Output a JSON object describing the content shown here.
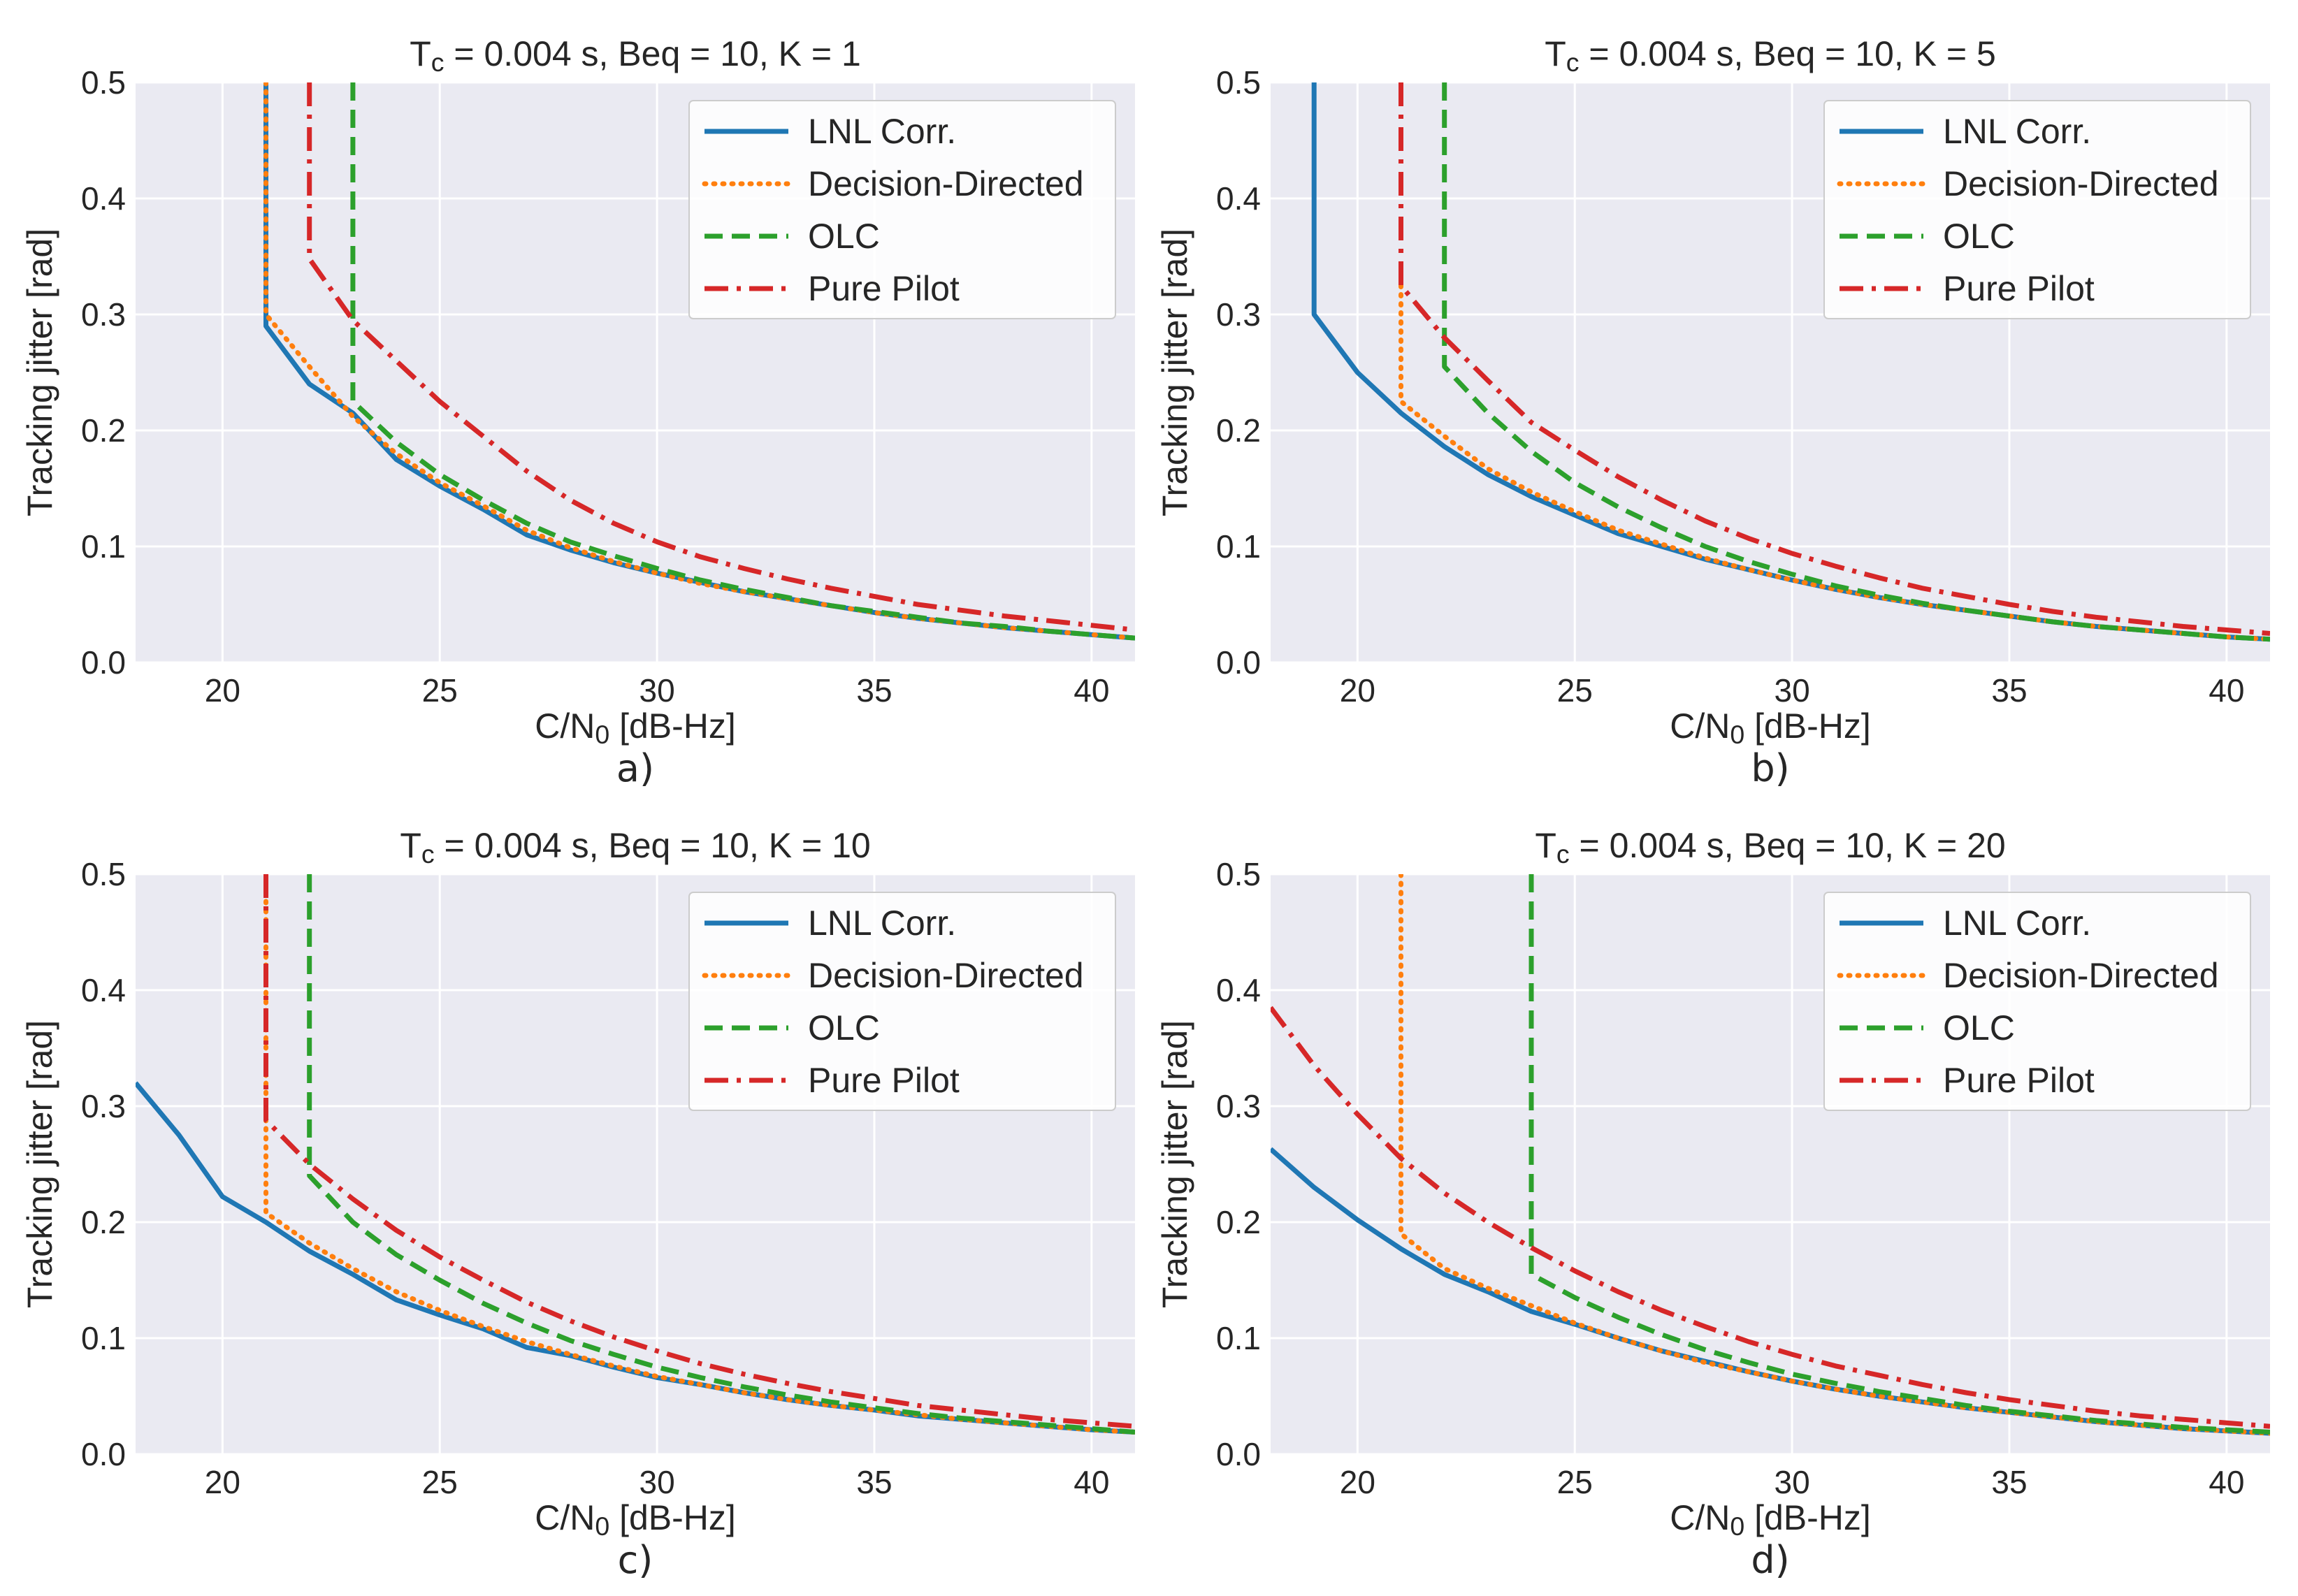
{
  "figure": {
    "colors": {
      "panel_bg": "#eaeaf2",
      "grid": "#ffffff",
      "text": "#262626",
      "legend_bg": "#ffffff",
      "legend_border": "#cccccc"
    }
  },
  "chart_data": [
    {
      "type": "line",
      "panel_label": "a)",
      "title": "T_c = 0.004 s, Beq = 10, K = 1",
      "title_parts": {
        "pre": "T",
        "sub": "c",
        "post": " = 0.004 s, Beq = 10, K = 1"
      },
      "xlabel_parts": {
        "pre": "C/N",
        "sub": "0",
        "post": " [dB-Hz]"
      },
      "ylabel": "Tracking jitter [rad]",
      "xlim": [
        18,
        41
      ],
      "ylim": [
        0,
        0.5
      ],
      "xticks": [
        20,
        25,
        30,
        35,
        40
      ],
      "yticks": [
        0.0,
        0.1,
        0.2,
        0.3,
        0.4,
        0.5
      ],
      "ytick_labels": [
        "0.0",
        "0.1",
        "0.2",
        "0.3",
        "0.4",
        "0.5"
      ],
      "grid": true,
      "legend_position": "top-right",
      "series": [
        {
          "name": "LNL Corr.",
          "color": "#1f77b4",
          "style": "solid",
          "x": [
            21,
            21,
            22,
            23,
            24,
            25,
            26,
            27,
            28,
            29,
            30,
            31,
            32,
            33,
            34,
            35,
            36,
            37,
            38,
            39,
            40,
            41
          ],
          "y": [
            0.5,
            0.29,
            0.24,
            0.215,
            0.175,
            0.152,
            0.132,
            0.11,
            0.097,
            0.086,
            0.077,
            0.069,
            0.061,
            0.055,
            0.049,
            0.043,
            0.038,
            0.034,
            0.03,
            0.027,
            0.024,
            0.021
          ]
        },
        {
          "name": "Decision-Directed",
          "color": "#ff7f0e",
          "style": "dotted",
          "x": [
            21,
            21,
            22,
            23,
            24,
            25,
            26,
            27,
            28,
            29,
            30,
            31,
            32,
            33,
            34,
            35,
            36,
            37,
            38,
            39,
            40,
            41
          ],
          "y": [
            0.5,
            0.3,
            0.255,
            0.212,
            0.18,
            0.155,
            0.135,
            0.114,
            0.099,
            0.087,
            0.077,
            0.068,
            0.061,
            0.055,
            0.049,
            0.043,
            0.038,
            0.034,
            0.03,
            0.027,
            0.024,
            0.021
          ]
        },
        {
          "name": "OLC",
          "color": "#2ca02c",
          "style": "dashed",
          "x": [
            23,
            23,
            24,
            25,
            26,
            27,
            28,
            29,
            30,
            31,
            32,
            33,
            34,
            35,
            36,
            37,
            38,
            39,
            40,
            41
          ],
          "y": [
            0.5,
            0.225,
            0.19,
            0.162,
            0.14,
            0.12,
            0.104,
            0.092,
            0.081,
            0.071,
            0.063,
            0.056,
            0.049,
            0.044,
            0.039,
            0.034,
            0.031,
            0.027,
            0.024,
            0.021
          ]
        },
        {
          "name": "Pure Pilot",
          "color": "#d62728",
          "style": "dashdot",
          "x": [
            22,
            22,
            23,
            24,
            25,
            26,
            27,
            28,
            29,
            30,
            31,
            32,
            33,
            34,
            35,
            36,
            37,
            38,
            39,
            40,
            41
          ],
          "y": [
            0.5,
            0.348,
            0.295,
            0.26,
            0.225,
            0.195,
            0.165,
            0.14,
            0.12,
            0.104,
            0.091,
            0.081,
            0.072,
            0.064,
            0.057,
            0.05,
            0.045,
            0.04,
            0.036,
            0.032,
            0.028
          ]
        }
      ]
    },
    {
      "type": "line",
      "panel_label": "b)",
      "title": "T_c = 0.004 s, Beq = 10, K = 5",
      "title_parts": {
        "pre": "T",
        "sub": "c",
        "post": " = 0.004 s, Beq = 10, K = 5"
      },
      "xlabel_parts": {
        "pre": "C/N",
        "sub": "0",
        "post": " [dB-Hz]"
      },
      "ylabel": "Tracking jitter [rad]",
      "xlim": [
        18,
        41
      ],
      "ylim": [
        0,
        0.5
      ],
      "xticks": [
        20,
        25,
        30,
        35,
        40
      ],
      "yticks": [
        0.0,
        0.1,
        0.2,
        0.3,
        0.4,
        0.5
      ],
      "ytick_labels": [
        "0.0",
        "0.1",
        "0.2",
        "0.3",
        "0.4",
        "0.5"
      ],
      "grid": true,
      "legend_position": "top-right",
      "series": [
        {
          "name": "LNL Corr.",
          "color": "#1f77b4",
          "style": "solid",
          "x": [
            19,
            19,
            20,
            21,
            22,
            23,
            24,
            25,
            26,
            27,
            28,
            29,
            30,
            31,
            32,
            33,
            34,
            35,
            36,
            37,
            38,
            39,
            40,
            41
          ],
          "y": [
            0.5,
            0.3,
            0.25,
            0.215,
            0.186,
            0.162,
            0.143,
            0.127,
            0.111,
            0.1,
            0.089,
            0.08,
            0.071,
            0.063,
            0.056,
            0.05,
            0.045,
            0.04,
            0.035,
            0.031,
            0.028,
            0.025,
            0.022,
            0.02
          ]
        },
        {
          "name": "Decision-Directed",
          "color": "#ff7f0e",
          "style": "dotted",
          "x": [
            21,
            21,
            22,
            23,
            24,
            25,
            26,
            27,
            28,
            29,
            30,
            31,
            32,
            33,
            34,
            35,
            36,
            37,
            38,
            39,
            40,
            41
          ],
          "y": [
            0.325,
            0.225,
            0.195,
            0.167,
            0.147,
            0.13,
            0.114,
            0.102,
            0.09,
            0.08,
            0.071,
            0.063,
            0.056,
            0.05,
            0.045,
            0.04,
            0.035,
            0.031,
            0.028,
            0.025,
            0.022,
            0.02
          ]
        },
        {
          "name": "OLC",
          "color": "#2ca02c",
          "style": "dashed",
          "x": [
            22,
            22,
            23,
            24,
            25,
            26,
            27,
            28,
            29,
            30,
            31,
            32,
            33,
            34,
            35,
            36,
            37,
            38,
            39,
            40,
            41
          ],
          "y": [
            0.5,
            0.255,
            0.215,
            0.182,
            0.155,
            0.134,
            0.116,
            0.1,
            0.087,
            0.076,
            0.066,
            0.058,
            0.051,
            0.045,
            0.04,
            0.035,
            0.031,
            0.028,
            0.025,
            0.022,
            0.02
          ]
        },
        {
          "name": "Pure Pilot",
          "color": "#d62728",
          "style": "dashdot",
          "x": [
            21,
            21,
            22,
            23,
            24,
            25,
            26,
            27,
            28,
            29,
            30,
            31,
            32,
            33,
            34,
            35,
            36,
            37,
            38,
            39,
            40,
            41
          ],
          "y": [
            0.5,
            0.325,
            0.28,
            0.243,
            0.207,
            0.183,
            0.16,
            0.14,
            0.122,
            0.107,
            0.094,
            0.083,
            0.073,
            0.064,
            0.057,
            0.05,
            0.044,
            0.039,
            0.035,
            0.031,
            0.028,
            0.025
          ]
        }
      ]
    },
    {
      "type": "line",
      "panel_label": "c)",
      "title": "T_c = 0.004 s, Beq = 10, K = 10",
      "title_parts": {
        "pre": "T",
        "sub": "c",
        "post": " = 0.004 s, Beq = 10, K = 10"
      },
      "xlabel_parts": {
        "pre": "C/N",
        "sub": "0",
        "post": " [dB-Hz]"
      },
      "ylabel": "Tracking jitter [rad]",
      "xlim": [
        18,
        41
      ],
      "ylim": [
        0,
        0.5
      ],
      "xticks": [
        20,
        25,
        30,
        35,
        40
      ],
      "yticks": [
        0.0,
        0.1,
        0.2,
        0.3,
        0.4,
        0.5
      ],
      "ytick_labels": [
        "0.0",
        "0.1",
        "0.2",
        "0.3",
        "0.4",
        "0.5"
      ],
      "grid": true,
      "legend_position": "top-right",
      "series": [
        {
          "name": "LNL Corr.",
          "color": "#1f77b4",
          "style": "solid",
          "x": [
            18,
            19,
            20,
            21,
            22,
            23,
            24,
            25,
            26,
            27,
            28,
            29,
            30,
            31,
            32,
            33,
            34,
            35,
            36,
            37,
            38,
            39,
            40,
            41
          ],
          "y": [
            0.32,
            0.275,
            0.222,
            0.2,
            0.175,
            0.155,
            0.133,
            0.12,
            0.108,
            0.092,
            0.085,
            0.075,
            0.066,
            0.06,
            0.053,
            0.047,
            0.042,
            0.038,
            0.033,
            0.03,
            0.027,
            0.024,
            0.021,
            0.019
          ]
        },
        {
          "name": "Decision-Directed",
          "color": "#ff7f0e",
          "style": "dotted",
          "x": [
            21,
            21,
            22,
            23,
            24,
            25,
            26,
            27,
            28,
            29,
            30,
            31,
            32,
            33,
            34,
            35,
            36,
            37,
            38,
            39,
            40,
            41
          ],
          "y": [
            0.5,
            0.208,
            0.182,
            0.16,
            0.14,
            0.124,
            0.11,
            0.097,
            0.086,
            0.076,
            0.067,
            0.06,
            0.053,
            0.047,
            0.042,
            0.038,
            0.034,
            0.03,
            0.027,
            0.024,
            0.021,
            0.019
          ]
        },
        {
          "name": "OLC",
          "color": "#2ca02c",
          "style": "dashed",
          "x": [
            22,
            22,
            23,
            24,
            25,
            26,
            27,
            28,
            29,
            30,
            31,
            32,
            33,
            34,
            35,
            36,
            37,
            38,
            39,
            40,
            41
          ],
          "y": [
            0.5,
            0.24,
            0.2,
            0.172,
            0.15,
            0.13,
            0.113,
            0.098,
            0.086,
            0.075,
            0.066,
            0.058,
            0.051,
            0.045,
            0.04,
            0.035,
            0.031,
            0.028,
            0.025,
            0.022,
            0.019
          ]
        },
        {
          "name": "Pure Pilot",
          "color": "#d62728",
          "style": "dashdot",
          "x": [
            21,
            21,
            22,
            23,
            24,
            25,
            26,
            27,
            28,
            29,
            30,
            31,
            32,
            33,
            34,
            35,
            36,
            37,
            38,
            39,
            40,
            41
          ],
          "y": [
            0.5,
            0.288,
            0.25,
            0.22,
            0.193,
            0.17,
            0.15,
            0.131,
            0.115,
            0.101,
            0.089,
            0.078,
            0.069,
            0.061,
            0.054,
            0.048,
            0.042,
            0.038,
            0.034,
            0.03,
            0.027,
            0.024
          ]
        }
      ]
    },
    {
      "type": "line",
      "panel_label": "d)",
      "title": "T_c = 0.004 s, Beq = 10, K = 20",
      "title_parts": {
        "pre": "T",
        "sub": "c",
        "post": " = 0.004 s, Beq = 10, K = 20"
      },
      "xlabel_parts": {
        "pre": "C/N",
        "sub": "0",
        "post": " [dB-Hz]"
      },
      "ylabel": "Tracking jitter [rad]",
      "xlim": [
        18,
        41
      ],
      "ylim": [
        0,
        0.5
      ],
      "xticks": [
        20,
        25,
        30,
        35,
        40
      ],
      "yticks": [
        0.0,
        0.1,
        0.2,
        0.3,
        0.4,
        0.5
      ],
      "ytick_labels": [
        "0.0",
        "0.1",
        "0.2",
        "0.3",
        "0.4",
        "0.5"
      ],
      "grid": true,
      "legend_position": "top-right",
      "series": [
        {
          "name": "LNL Corr.",
          "color": "#1f77b4",
          "style": "solid",
          "x": [
            18,
            19,
            20,
            21,
            22,
            23,
            24,
            25,
            26,
            27,
            28,
            29,
            30,
            31,
            32,
            33,
            34,
            35,
            36,
            37,
            38,
            39,
            40,
            41
          ],
          "y": [
            0.263,
            0.23,
            0.202,
            0.177,
            0.155,
            0.14,
            0.123,
            0.112,
            0.1,
            0.089,
            0.08,
            0.071,
            0.063,
            0.056,
            0.05,
            0.045,
            0.04,
            0.036,
            0.032,
            0.028,
            0.025,
            0.022,
            0.02,
            0.018
          ]
        },
        {
          "name": "Decision-Directed",
          "color": "#ff7f0e",
          "style": "dotted",
          "x": [
            21,
            21,
            22,
            23,
            24,
            25,
            26,
            27,
            28,
            29,
            30,
            31,
            32,
            33,
            34,
            35,
            36,
            37,
            38,
            39,
            40,
            41
          ],
          "y": [
            0.5,
            0.19,
            0.16,
            0.143,
            0.128,
            0.113,
            0.1,
            0.089,
            0.079,
            0.071,
            0.063,
            0.056,
            0.05,
            0.045,
            0.04,
            0.036,
            0.032,
            0.028,
            0.025,
            0.022,
            0.02,
            0.018
          ]
        },
        {
          "name": "OLC",
          "color": "#2ca02c",
          "style": "dashed",
          "x": [
            24,
            24,
            25,
            26,
            27,
            28,
            29,
            30,
            31,
            32,
            33,
            34,
            35,
            36,
            37,
            38,
            39,
            40,
            41
          ],
          "y": [
            0.5,
            0.155,
            0.135,
            0.118,
            0.103,
            0.09,
            0.079,
            0.069,
            0.061,
            0.054,
            0.048,
            0.042,
            0.037,
            0.033,
            0.029,
            0.026,
            0.023,
            0.021,
            0.019
          ]
        },
        {
          "name": "Pure Pilot",
          "color": "#d62728",
          "style": "dashdot",
          "x": [
            18,
            19,
            20,
            21,
            22,
            23,
            24,
            25,
            26,
            27,
            28,
            29,
            30,
            31,
            32,
            33,
            34,
            35,
            36,
            37,
            38,
            39,
            40,
            41
          ],
          "y": [
            0.385,
            0.335,
            0.293,
            0.255,
            0.225,
            0.2,
            0.178,
            0.158,
            0.14,
            0.124,
            0.11,
            0.097,
            0.086,
            0.076,
            0.068,
            0.06,
            0.053,
            0.047,
            0.042,
            0.037,
            0.033,
            0.03,
            0.027,
            0.024
          ]
        }
      ]
    }
  ]
}
